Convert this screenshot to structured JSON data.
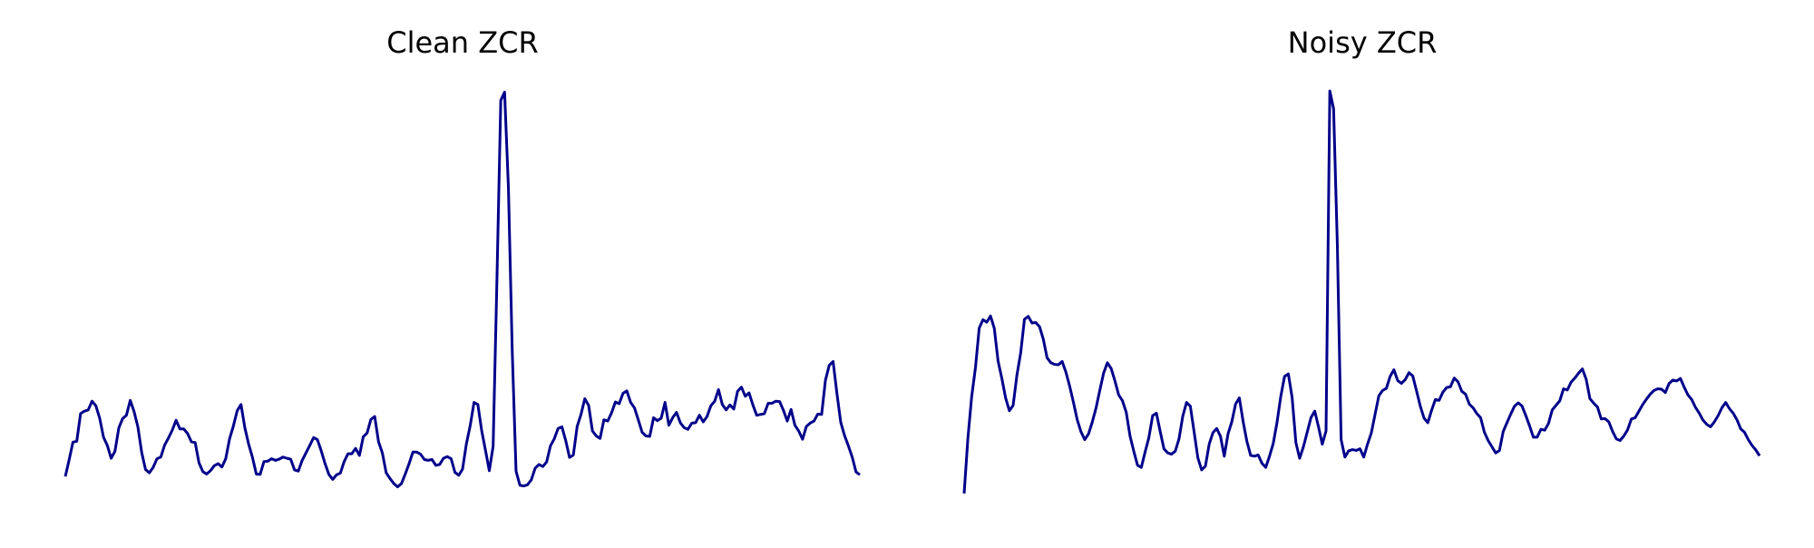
{
  "chart_data": [
    {
      "type": "line",
      "title": "Clean ZCR",
      "xlabel": "",
      "ylabel": "",
      "axes_visible": false,
      "grid": false,
      "color": "#00008b",
      "xlim": [
        0,
        200
      ],
      "ylim": [
        0,
        1
      ],
      "values": [
        0.061,
        0.101,
        0.144,
        0.146,
        0.213,
        0.219,
        0.222,
        0.243,
        0.232,
        0.202,
        0.156,
        0.136,
        0.105,
        0.122,
        0.178,
        0.201,
        0.209,
        0.245,
        0.218,
        0.181,
        0.119,
        0.078,
        0.07,
        0.083,
        0.104,
        0.108,
        0.137,
        0.154,
        0.173,
        0.197,
        0.176,
        0.176,
        0.165,
        0.145,
        0.143,
        0.094,
        0.073,
        0.067,
        0.075,
        0.087,
        0.092,
        0.084,
        0.104,
        0.152,
        0.183,
        0.22,
        0.235,
        0.179,
        0.139,
        0.107,
        0.067,
        0.066,
        0.097,
        0.098,
        0.104,
        0.1,
        0.103,
        0.108,
        0.105,
        0.103,
        0.077,
        0.074,
        0.1,
        0.118,
        0.136,
        0.155,
        0.15,
        0.123,
        0.092,
        0.066,
        0.054,
        0.065,
        0.069,
        0.097,
        0.116,
        0.116,
        0.129,
        0.112,
        0.157,
        0.166,
        0.199,
        0.206,
        0.145,
        0.118,
        0.07,
        0.056,
        0.044,
        0.036,
        0.044,
        0.067,
        0.092,
        0.12,
        0.12,
        0.115,
        0.102,
        0.1,
        0.102,
        0.088,
        0.09,
        0.105,
        0.109,
        0.104,
        0.071,
        0.064,
        0.079,
        0.14,
        0.184,
        0.24,
        0.235,
        0.172,
        0.124,
        0.075,
        0.134,
        0.538,
        0.97,
        0.99,
        0.76,
        0.365,
        0.074,
        0.04,
        0.038,
        0.041,
        0.053,
        0.081,
        0.09,
        0.085,
        0.096,
        0.135,
        0.152,
        0.177,
        0.181,
        0.148,
        0.107,
        0.113,
        0.182,
        0.211,
        0.249,
        0.233,
        0.171,
        0.159,
        0.153,
        0.198,
        0.195,
        0.215,
        0.241,
        0.237,
        0.262,
        0.268,
        0.24,
        0.227,
        0.198,
        0.168,
        0.159,
        0.158,
        0.203,
        0.196,
        0.202,
        0.24,
        0.185,
        0.203,
        0.216,
        0.191,
        0.179,
        0.175,
        0.19,
        0.191,
        0.209,
        0.193,
        0.206,
        0.232,
        0.243,
        0.271,
        0.235,
        0.222,
        0.234,
        0.224,
        0.267,
        0.277,
        0.255,
        0.263,
        0.234,
        0.209,
        0.211,
        0.213,
        0.238,
        0.238,
        0.243,
        0.242,
        0.221,
        0.195,
        0.223,
        0.185,
        0.171,
        0.151,
        0.182,
        0.19,
        0.195,
        0.212,
        0.211,
        0.294,
        0.33,
        0.339,
        0.262,
        0.192,
        0.16,
        0.135,
        0.108,
        0.072,
        0.065
      ]
    },
    {
      "type": "line",
      "title": "Noisy ZCR",
      "xlabel": "",
      "ylabel": "",
      "axes_visible": false,
      "grid": false,
      "color": "#00008b",
      "xlim": [
        0,
        200
      ],
      "ylim": [
        0,
        1
      ],
      "values": [
        0.02,
        0.154,
        0.254,
        0.324,
        0.42,
        0.44,
        0.434,
        0.449,
        0.419,
        0.34,
        0.298,
        0.251,
        0.22,
        0.233,
        0.306,
        0.36,
        0.441,
        0.448,
        0.432,
        0.433,
        0.423,
        0.393,
        0.348,
        0.336,
        0.332,
        0.331,
        0.339,
        0.313,
        0.279,
        0.24,
        0.198,
        0.169,
        0.15,
        0.164,
        0.193,
        0.227,
        0.27,
        0.311,
        0.336,
        0.322,
        0.292,
        0.258,
        0.244,
        0.216,
        0.159,
        0.122,
        0.088,
        0.083,
        0.12,
        0.155,
        0.208,
        0.214,
        0.17,
        0.128,
        0.118,
        0.115,
        0.122,
        0.152,
        0.207,
        0.24,
        0.231,
        0.169,
        0.106,
        0.077,
        0.086,
        0.139,
        0.167,
        0.177,
        0.158,
        0.11,
        0.164,
        0.193,
        0.236,
        0.251,
        0.194,
        0.146,
        0.112,
        0.11,
        0.113,
        0.093,
        0.083,
        0.11,
        0.141,
        0.192,
        0.255,
        0.303,
        0.309,
        0.252,
        0.143,
        0.105,
        0.133,
        0.168,
        0.203,
        0.219,
        0.181,
        0.139,
        0.171,
        0.993,
        0.95,
        0.62,
        0.15,
        0.108,
        0.123,
        0.126,
        0.124,
        0.128,
        0.108,
        0.139,
        0.166,
        0.211,
        0.256,
        0.269,
        0.274,
        0.303,
        0.319,
        0.293,
        0.286,
        0.295,
        0.312,
        0.304,
        0.268,
        0.231,
        0.202,
        0.191,
        0.221,
        0.247,
        0.245,
        0.265,
        0.276,
        0.278,
        0.299,
        0.29,
        0.267,
        0.26,
        0.236,
        0.227,
        0.213,
        0.203,
        0.168,
        0.148,
        0.133,
        0.118,
        0.124,
        0.17,
        0.191,
        0.212,
        0.231,
        0.239,
        0.231,
        0.208,
        0.183,
        0.156,
        0.156,
        0.175,
        0.173,
        0.189,
        0.222,
        0.233,
        0.244,
        0.273,
        0.27,
        0.289,
        0.299,
        0.311,
        0.321,
        0.296,
        0.249,
        0.238,
        0.229,
        0.2,
        0.201,
        0.193,
        0.17,
        0.152,
        0.148,
        0.159,
        0.174,
        0.2,
        0.203,
        0.219,
        0.235,
        0.248,
        0.26,
        0.269,
        0.273,
        0.272,
        0.264,
        0.286,
        0.294,
        0.292,
        0.298,
        0.277,
        0.258,
        0.247,
        0.228,
        0.214,
        0.197,
        0.187,
        0.181,
        0.193,
        0.208,
        0.227,
        0.24,
        0.225,
        0.214,
        0.198,
        0.176,
        0.168,
        0.15,
        0.136,
        0.125,
        0.111
      ]
    }
  ]
}
